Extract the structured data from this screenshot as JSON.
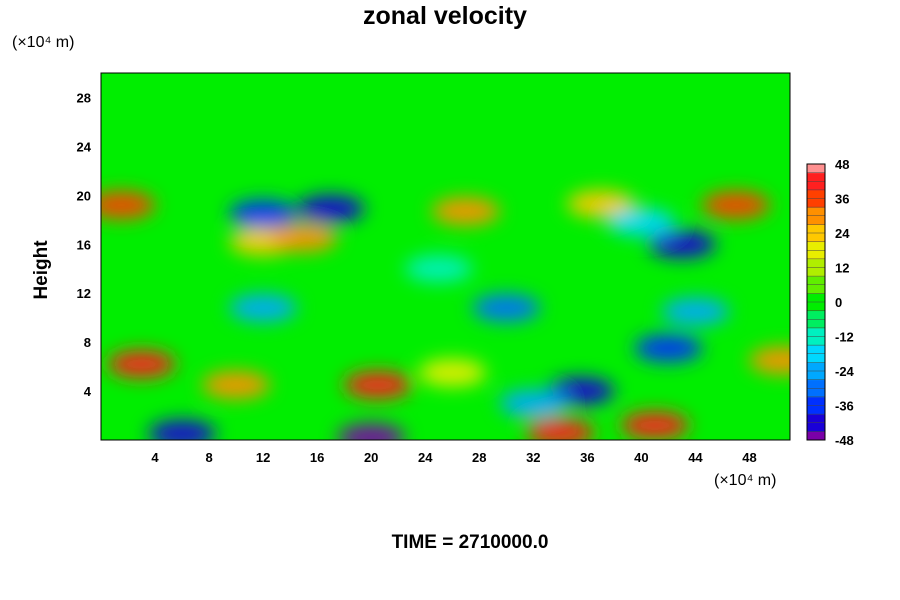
{
  "chart_data": {
    "type": "heatmap",
    "title": "zonal velocity",
    "xlabel": "",
    "ylabel": "Height",
    "x_unit": "(×10⁴ m)",
    "y_unit": "(×10⁴ m)",
    "x_range": [
      0,
      51
    ],
    "y_range": [
      0,
      30
    ],
    "x_ticks": [
      4,
      8,
      12,
      16,
      20,
      24,
      28,
      32,
      36,
      40,
      44,
      48
    ],
    "y_ticks": [
      4,
      8,
      12,
      16,
      20,
      24,
      28
    ],
    "colorbar": {
      "min": -48,
      "max": 48,
      "ticks": [
        48,
        36,
        24,
        12,
        0,
        -12,
        -24,
        -36,
        -48
      ]
    },
    "grid": false,
    "features": [
      {
        "x": 3,
        "y": 6.2,
        "value": 42
      },
      {
        "x": 10,
        "y": 4.5,
        "value": 30
      },
      {
        "x": 20.5,
        "y": 4.5,
        "value": 40
      },
      {
        "x": 26,
        "y": 5.5,
        "value": 20
      },
      {
        "x": 34,
        "y": 0.6,
        "value": 42
      },
      {
        "x": 41,
        "y": 1.2,
        "value": 40
      },
      {
        "x": 50.5,
        "y": 6.5,
        "value": 30
      },
      {
        "x": 6,
        "y": 0.5,
        "value": -44
      },
      {
        "x": 20,
        "y": 0.2,
        "value": -46
      },
      {
        "x": 35.5,
        "y": 4.0,
        "value": -40
      },
      {
        "x": 42,
        "y": 7.5,
        "value": -34
      },
      {
        "x": 32,
        "y": 3.0,
        "value": -22
      },
      {
        "x": 12,
        "y": 10.8,
        "value": -26
      },
      {
        "x": 30,
        "y": 10.8,
        "value": -30
      },
      {
        "x": 44,
        "y": 10.5,
        "value": -24
      },
      {
        "x": 12,
        "y": 16.2,
        "value": 26
      },
      {
        "x": 15,
        "y": 16.5,
        "value": 30
      },
      {
        "x": 43,
        "y": 16.0,
        "value": -44
      },
      {
        "x": 12,
        "y": 18.5,
        "value": -34
      },
      {
        "x": 17,
        "y": 18.9,
        "value": -40
      },
      {
        "x": 27,
        "y": 18.7,
        "value": 30
      },
      {
        "x": 1.5,
        "y": 19.2,
        "value": 34
      },
      {
        "x": 37,
        "y": 19.3,
        "value": 26
      },
      {
        "x": 47,
        "y": 19.2,
        "value": 38
      },
      {
        "x": 40,
        "y": 17.8,
        "value": -20
      },
      {
        "x": 25,
        "y": 14.0,
        "value": -14
      }
    ],
    "time_label": "TIME = 2710000.0"
  }
}
